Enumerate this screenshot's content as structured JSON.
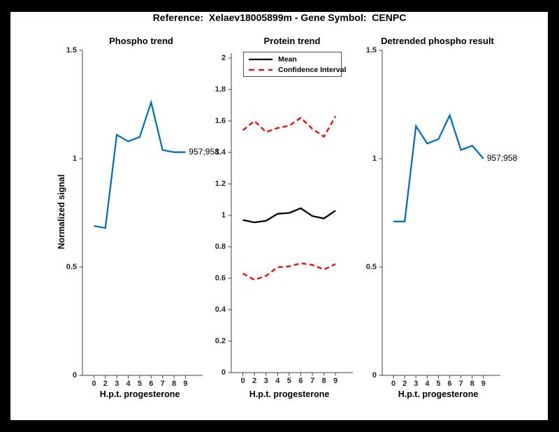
{
  "figure_title": "Reference:  Xelaev18005899m - Gene Symbol:  CENPC",
  "colors": {
    "background_border": "#000000",
    "figure_background": "#ffffff",
    "phospho_line": "#0072BD",
    "mean_line": "#000000",
    "confidence_interval_line": "#FF0000",
    "axis": "#404040",
    "tick_label": "#262626"
  },
  "chart_data": [
    {
      "type": "line",
      "title": "Phospho trend",
      "xlabel": "H.p.t. progesterone",
      "ylabel": "Normalized signal",
      "x_tick_labels": [
        "0",
        "2",
        "3",
        "4",
        "5",
        "6",
        "7",
        "8",
        "9"
      ],
      "ylim": [
        0,
        1.5
      ],
      "y_ticks": [
        0,
        0.5,
        1,
        1.5
      ],
      "y_tick_labels": [
        "0",
        "0.5",
        "1",
        "1.5"
      ],
      "grid": false,
      "series": [
        {
          "name": "Phospho trend",
          "color": "#0072BD",
          "dash": false,
          "values": [
            0.69,
            0.68,
            1.11,
            1.08,
            1.1,
            1.26,
            1.04,
            1.03,
            1.03
          ]
        }
      ],
      "annotation": "957;958"
    },
    {
      "type": "line",
      "title": "Protein trend",
      "xlabel": "H.p.t. progesterone",
      "ylabel": "",
      "x_tick_labels": [
        "0",
        "2",
        "3",
        "4",
        "5",
        "6",
        "7",
        "8",
        "9"
      ],
      "ylim": [
        0,
        2
      ],
      "y_ticks": [
        0,
        0.2,
        0.4,
        0.6,
        0.8,
        1,
        1.2,
        1.4,
        1.6,
        1.8,
        2
      ],
      "y_tick_labels": [
        "0",
        "0.2",
        "0.4",
        "0.6",
        "0.8",
        "1",
        "1.2",
        "1.4",
        "1.6",
        "1.8",
        "2"
      ],
      "grid": false,
      "series": [
        {
          "name": "Confidence Interval upper",
          "color": "#FF0000",
          "dash": true,
          "values": [
            1.54,
            1.6,
            1.53,
            1.555,
            1.57,
            1.62,
            1.55,
            1.5,
            1.63
          ]
        },
        {
          "name": "Confidence Interval lower",
          "color": "#FF0000",
          "dash": true,
          "values": [
            0.63,
            0.59,
            0.615,
            0.67,
            0.675,
            0.695,
            0.685,
            0.655,
            0.69
          ]
        },
        {
          "name": "Mean",
          "color": "#000000",
          "dash": false,
          "values": [
            0.97,
            0.955,
            0.965,
            1.01,
            1.015,
            1.045,
            0.995,
            0.98,
            1.03
          ]
        }
      ],
      "legend": [
        {
          "label": "Mean",
          "color": "#000000",
          "dash": false
        },
        {
          "label": "Confidence Interval",
          "color": "#FF0000",
          "dash": true
        }
      ],
      "legend_position": "top-left-inside"
    },
    {
      "type": "line",
      "title": "Detrended phospho result",
      "xlabel": "H.p.t. progesterone",
      "ylabel": "",
      "x_tick_labels": [
        "0",
        "2",
        "3",
        "4",
        "5",
        "6",
        "7",
        "8",
        "9"
      ],
      "ylim": [
        0,
        1.5
      ],
      "y_ticks": [
        0,
        0.5,
        1,
        1.5
      ],
      "y_tick_labels": [
        "0",
        "0.5",
        "1",
        "1.5"
      ],
      "grid": false,
      "series": [
        {
          "name": "Detrended phospho",
          "color": "#0072BD",
          "dash": false,
          "values": [
            0.71,
            0.71,
            1.15,
            1.07,
            1.09,
            1.2,
            1.04,
            1.06,
            1.0
          ]
        }
      ],
      "annotation": "957;958"
    }
  ]
}
